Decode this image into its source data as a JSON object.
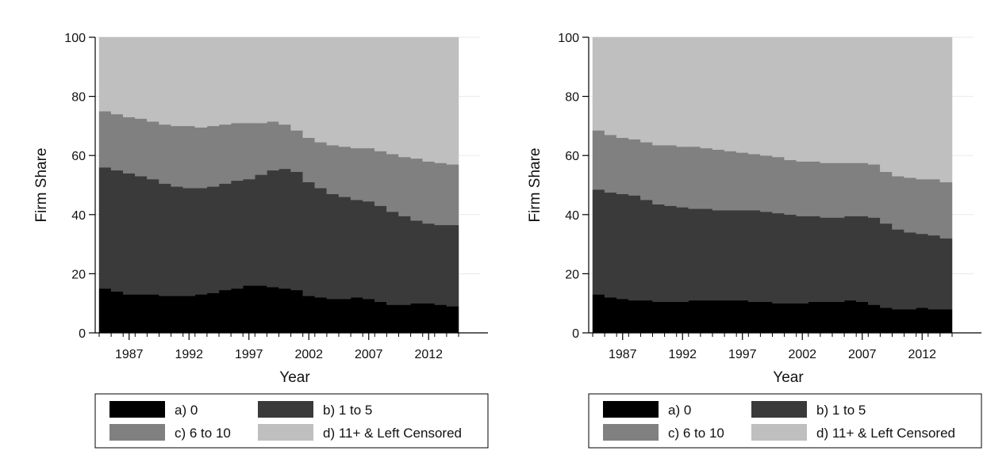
{
  "colors": {
    "a": "#000000",
    "b": "#3a3a3a",
    "c": "#808080",
    "d": "#bfbfbf"
  },
  "chart_data": [
    {
      "type": "area",
      "title": "",
      "xlabel": "Year",
      "ylabel": "Firm Share",
      "xlim": [
        1985,
        2014
      ],
      "ylim": [
        0,
        100
      ],
      "yticks": [
        "0",
        "20",
        "40",
        "60",
        "80",
        "100"
      ],
      "xticks": [
        "1987",
        "1992",
        "1997",
        "2002",
        "2007",
        "2012"
      ],
      "stacked": true,
      "step": true,
      "legend_position": "bottom",
      "x": [
        1985,
        1986,
        1987,
        1988,
        1989,
        1990,
        1991,
        1992,
        1993,
        1994,
        1995,
        1996,
        1997,
        1998,
        1999,
        2000,
        2001,
        2002,
        2003,
        2004,
        2005,
        2006,
        2007,
        2008,
        2009,
        2010,
        2011,
        2012,
        2013,
        2014
      ],
      "series": [
        {
          "name": "a) 0",
          "values": [
            15,
            14,
            13,
            13,
            13,
            12.5,
            12.5,
            12.5,
            13,
            13.5,
            14.5,
            15,
            16,
            16,
            15.5,
            15,
            14.5,
            12.5,
            12,
            11.5,
            11.5,
            12,
            11.5,
            10.5,
            9.5,
            9.5,
            10,
            10,
            9.5,
            9
          ]
        },
        {
          "name": "b) 1 to 5",
          "values": [
            41,
            41,
            41,
            40,
            39,
            38,
            37,
            36.5,
            36,
            36,
            36,
            36.5,
            36,
            37.5,
            39.5,
            40.5,
            40,
            38.5,
            37,
            35.5,
            34.5,
            33,
            33,
            32.5,
            31.5,
            30,
            28,
            27,
            27,
            27.5
          ]
        },
        {
          "name": "c) 6 to 10",
          "values": [
            19,
            19,
            19,
            19.5,
            19.5,
            20,
            20.5,
            21,
            20.5,
            20.5,
            20,
            19.5,
            19,
            17.5,
            16.5,
            15,
            14,
            15,
            15.5,
            16.5,
            17,
            17.5,
            18,
            18.5,
            19.5,
            20,
            21,
            21,
            21,
            20.5
          ]
        },
        {
          "name": "d) 11+ & Left Censored",
          "values": [
            25,
            26,
            27,
            27.5,
            28.5,
            29.5,
            30,
            30,
            30.5,
            30,
            29.5,
            29,
            29,
            29,
            28.5,
            29.5,
            31.5,
            34,
            35.5,
            36.5,
            37,
            37.5,
            37.5,
            38.5,
            39.5,
            40.5,
            41,
            42,
            42.5,
            43
          ]
        }
      ]
    },
    {
      "type": "area",
      "title": "",
      "xlabel": "Year",
      "ylabel": "Firm Share",
      "xlim": [
        1985,
        2014
      ],
      "ylim": [
        0,
        100
      ],
      "yticks": [
        "0",
        "20",
        "40",
        "60",
        "80",
        "100"
      ],
      "xticks": [
        "1987",
        "1992",
        "1997",
        "2002",
        "2007",
        "2012"
      ],
      "stacked": true,
      "step": true,
      "legend_position": "bottom",
      "x": [
        1985,
        1986,
        1987,
        1988,
        1989,
        1990,
        1991,
        1992,
        1993,
        1994,
        1995,
        1996,
        1997,
        1998,
        1999,
        2000,
        2001,
        2002,
        2003,
        2004,
        2005,
        2006,
        2007,
        2008,
        2009,
        2010,
        2011,
        2012,
        2013,
        2014
      ],
      "series": [
        {
          "name": "a) 0",
          "values": [
            13,
            12,
            11.5,
            11,
            11,
            10.5,
            10.5,
            10.5,
            11,
            11,
            11,
            11,
            11,
            10.5,
            10.5,
            10,
            10,
            10,
            10.5,
            10.5,
            10.5,
            11,
            10.5,
            9.5,
            8.5,
            8,
            8,
            8.5,
            8,
            8
          ]
        },
        {
          "name": "b) 1 to 5",
          "values": [
            35.5,
            35.5,
            35.5,
            35.5,
            34,
            33,
            32.5,
            32,
            31,
            31,
            30.5,
            30.5,
            30.5,
            31,
            30.5,
            30.5,
            30,
            29.5,
            29,
            28.5,
            28.5,
            28.5,
            29,
            29.5,
            28.5,
            27,
            26,
            25,
            25,
            24
          ]
        },
        {
          "name": "c) 6 to 10",
          "values": [
            20,
            19.5,
            19,
            19,
            19.5,
            20,
            20.5,
            20.5,
            21,
            20.5,
            20.5,
            20,
            19.5,
            19,
            19,
            19,
            18.5,
            18.5,
            18.5,
            18.5,
            18.5,
            18,
            18,
            18,
            17.5,
            18,
            18.5,
            18.5,
            19,
            19
          ]
        },
        {
          "name": "d) 11+ & Left Censored",
          "values": [
            31.5,
            33,
            34,
            34.5,
            35.5,
            36.5,
            36.5,
            37,
            37,
            37.5,
            38,
            38.5,
            39,
            39.5,
            40,
            40.5,
            41.5,
            42,
            42,
            42.5,
            42.5,
            42.5,
            42.5,
            43,
            45.5,
            47,
            47.5,
            48,
            48,
            49
          ]
        }
      ]
    }
  ]
}
